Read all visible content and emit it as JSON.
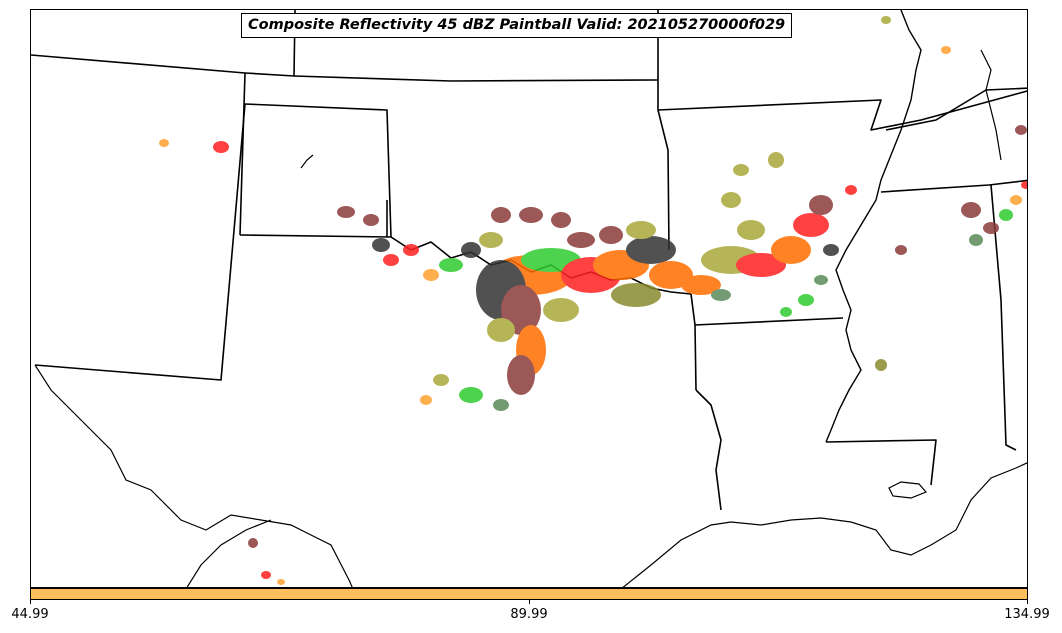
{
  "title": "Composite Reflectivity 45 dBZ Paintball Valid: 202105270000f029",
  "colorbar": {
    "color": "#ffbf5f",
    "tick_labels": [
      "44.99",
      "89.99",
      "134.99"
    ]
  },
  "member_colors": [
    "#8b3a3a",
    "#333333",
    "#ff2020",
    "#ff6e00",
    "#a9a83a",
    "#2ecc2e",
    "#ffa030",
    "#8a8a30",
    "#5a8a5a",
    "#e86060"
  ]
}
